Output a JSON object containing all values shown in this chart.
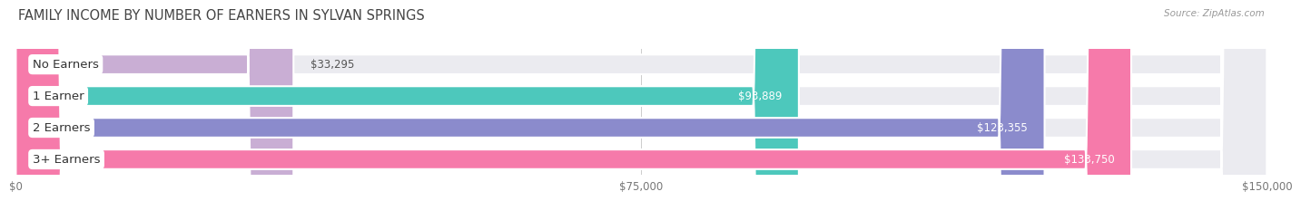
{
  "title": "FAMILY INCOME BY NUMBER OF EARNERS IN SYLVAN SPRINGS",
  "source": "Source: ZipAtlas.com",
  "categories": [
    "No Earners",
    "1 Earner",
    "2 Earners",
    "3+ Earners"
  ],
  "values": [
    33295,
    93889,
    123355,
    133750
  ],
  "bar_colors": [
    "#c9aed4",
    "#4dc8bc",
    "#8b8bcc",
    "#f67aaa"
  ],
  "bar_bg_color": "#ebebf0",
  "value_labels": [
    "$33,295",
    "$93,889",
    "$123,355",
    "$133,750"
  ],
  "xlim": [
    0,
    150000
  ],
  "xticks": [
    0,
    75000,
    150000
  ],
  "xtick_labels": [
    "$0",
    "$75,000",
    "$150,000"
  ],
  "background_color": "#ffffff",
  "bar_height": 0.62,
  "label_fontsize": 9.5,
  "title_fontsize": 10.5,
  "value_fontsize": 8.5,
  "vline_color": "#cccccc"
}
